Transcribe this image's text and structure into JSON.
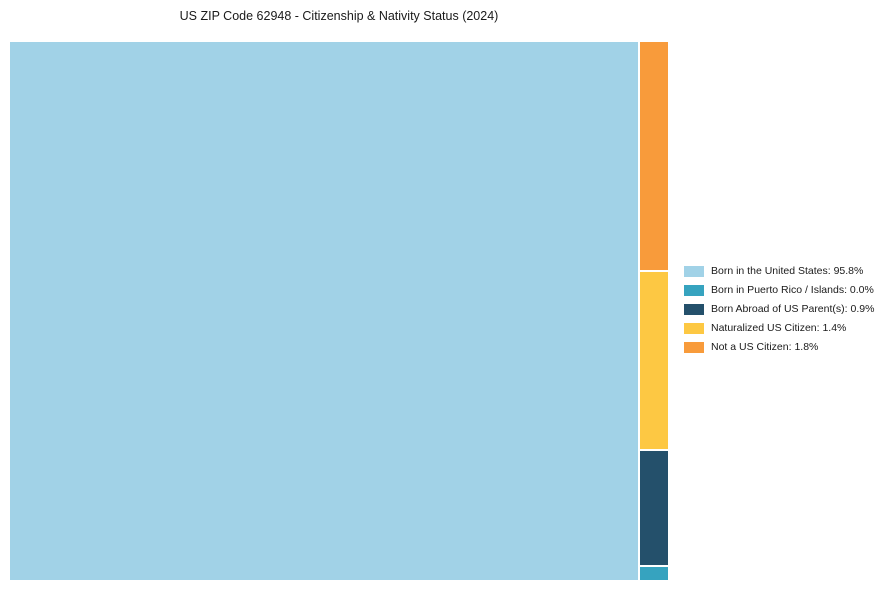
{
  "title": "US ZIP Code 62948 - Citizenship & Nativity Status (2024)",
  "chart_data": {
    "type": "treemap",
    "title": "US ZIP Code 62948 - Citizenship & Nativity Status (2024)",
    "unit": "percent",
    "segments": [
      {
        "label": "Born in the United States",
        "value": 95.8,
        "color": "#A1D2E7"
      },
      {
        "label": "Born in Puerto Rico / Islands",
        "value": 0.0,
        "color": "#36A3BF"
      },
      {
        "label": "Born Abroad of US Parent(s)",
        "value": 0.9,
        "color": "#24506B"
      },
      {
        "label": "Naturalized US Citizen",
        "value": 1.4,
        "color": "#FDC843"
      },
      {
        "label": "Not a US Citizen",
        "value": 1.8,
        "color": "#F89B3B"
      }
    ],
    "legend": [
      {
        "label": "Born in the United States: 95.8%",
        "color": "#A1D2E7"
      },
      {
        "label": "Born in Puerto Rico / Islands: 0.0%",
        "color": "#36A3BF"
      },
      {
        "label": "Born Abroad of US Parent(s): 0.9%",
        "color": "#24506B"
      },
      {
        "label": "Naturalized US Citizen: 1.4%",
        "color": "#FDC843"
      },
      {
        "label": "Not a US Citizen: 1.8%",
        "color": "#F89B3B"
      }
    ],
    "legend_position": "right",
    "layout": "main block left (95.8%), remainder stacked in right strip top-to-bottom: Not a US Citizen, Naturalized US Citizen, Born Abroad of US Parent(s), Born in Puerto Rico / Islands"
  }
}
